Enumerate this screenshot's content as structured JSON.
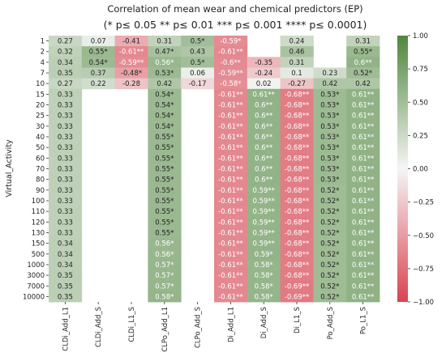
{
  "chart_data": {
    "type": "heatmap",
    "title": "Correlation of mean wear and chemical predictors (EP)",
    "subtitle": "(* p≤ 0.05 ** p≤ 0.01 *** p≤ 0.001 **** p≤ 0.0001)",
    "ylabel": "Virtual_Activity",
    "xlabel": "",
    "columns": [
      "CLDi_Add_L1",
      "CLDi_Add_S",
      "CLDi_L1_S",
      "CLPo_Add_L1",
      "CLPo_Add_S",
      "Di_Add_L1",
      "Di_Add_S",
      "Di_L1_S",
      "Po_Add_S",
      "Po_L1_S"
    ],
    "rows": [
      "1",
      "2",
      "4",
      "7",
      "10",
      "15",
      "20",
      "25",
      "30",
      "40",
      "50",
      "60",
      "70",
      "80",
      "90",
      "100",
      "110",
      "120",
      "130",
      "150",
      "500",
      "1000",
      "3000",
      "7000",
      "10000"
    ],
    "values": [
      [
        0.27,
        0.07,
        -0.41,
        0.31,
        0.5,
        -0.59,
        null,
        0.24,
        null,
        0.31
      ],
      [
        0.32,
        0.55,
        -0.61,
        0.47,
        0.43,
        -0.61,
        null,
        0.46,
        null,
        0.55
      ],
      [
        0.34,
        0.54,
        -0.59,
        0.56,
        0.5,
        -0.6,
        -0.35,
        0.31,
        null,
        0.6
      ],
      [
        0.35,
        0.37,
        -0.48,
        0.53,
        0.06,
        -0.59,
        -0.24,
        0.1,
        0.23,
        0.52
      ],
      [
        0.27,
        0.22,
        -0.28,
        0.42,
        -0.17,
        -0.58,
        0.02,
        -0.27,
        0.42,
        0.42
      ],
      [
        0.33,
        null,
        null,
        0.54,
        null,
        -0.61,
        0.61,
        -0.68,
        0.53,
        0.61
      ],
      [
        0.33,
        null,
        null,
        0.54,
        null,
        -0.61,
        0.6,
        -0.68,
        0.53,
        0.61
      ],
      [
        0.33,
        null,
        null,
        0.54,
        null,
        -0.61,
        0.6,
        -0.68,
        0.53,
        0.61
      ],
      [
        0.33,
        null,
        null,
        0.54,
        null,
        -0.61,
        0.6,
        -0.68,
        0.53,
        0.61
      ],
      [
        0.33,
        null,
        null,
        0.55,
        null,
        -0.61,
        0.6,
        -0.68,
        0.53,
        0.61
      ],
      [
        0.33,
        null,
        null,
        0.55,
        null,
        -0.61,
        0.6,
        -0.68,
        0.53,
        0.61
      ],
      [
        0.33,
        null,
        null,
        0.55,
        null,
        -0.61,
        0.6,
        -0.68,
        0.53,
        0.61
      ],
      [
        0.33,
        null,
        null,
        0.55,
        null,
        -0.61,
        0.6,
        -0.68,
        0.53,
        0.61
      ],
      [
        0.33,
        null,
        null,
        0.55,
        null,
        -0.61,
        0.6,
        -0.68,
        0.53,
        0.61
      ],
      [
        0.33,
        null,
        null,
        0.55,
        null,
        -0.61,
        0.59,
        -0.68,
        0.52,
        0.61
      ],
      [
        0.33,
        null,
        null,
        0.55,
        null,
        -0.61,
        0.59,
        -0.68,
        0.52,
        0.61
      ],
      [
        0.33,
        null,
        null,
        0.55,
        null,
        -0.61,
        0.59,
        -0.68,
        0.52,
        0.61
      ],
      [
        0.33,
        null,
        null,
        0.55,
        null,
        -0.61,
        0.59,
        -0.68,
        0.52,
        0.61
      ],
      [
        0.33,
        null,
        null,
        0.55,
        null,
        -0.61,
        0.59,
        -0.68,
        0.52,
        0.61
      ],
      [
        0.34,
        null,
        null,
        0.56,
        null,
        -0.61,
        0.59,
        -0.68,
        0.52,
        0.61
      ],
      [
        0.34,
        null,
        null,
        0.56,
        null,
        -0.61,
        0.59,
        -0.68,
        0.52,
        0.61
      ],
      [
        0.34,
        null,
        null,
        0.57,
        null,
        -0.61,
        0.58,
        -0.68,
        0.52,
        0.61
      ],
      [
        0.35,
        null,
        null,
        0.57,
        null,
        -0.61,
        0.58,
        -0.68,
        0.52,
        0.61
      ],
      [
        0.35,
        null,
        null,
        0.57,
        null,
        -0.61,
        0.58,
        -0.69,
        0.52,
        0.61
      ],
      [
        0.35,
        null,
        null,
        0.58,
        null,
        -0.61,
        0.58,
        -0.69,
        0.52,
        0.61
      ]
    ],
    "labels": [
      [
        "0.27",
        "0.07",
        "-0.41",
        "0.31",
        "0.5*",
        "-0.59*",
        "",
        "0.24",
        "",
        "0.31"
      ],
      [
        "0.32",
        "0.55*",
        "-0.61**",
        "0.47*",
        "0.43",
        "-0.61**",
        "",
        "0.46",
        "",
        "0.55*"
      ],
      [
        "0.34",
        "0.54*",
        "-0.59**",
        "0.56*",
        "0.5*",
        "-0.6**",
        "-0.35",
        "0.31",
        "",
        "0.6**"
      ],
      [
        "0.35",
        "0.37",
        "-0.48*",
        "0.53*",
        "0.06",
        "-0.59**",
        "-0.24",
        "0.1",
        "0.23",
        "0.52*"
      ],
      [
        "0.27",
        "0.22",
        "-0.28",
        "0.42",
        "-0.17",
        "-0.58*",
        "0.02",
        "-0.27",
        "0.42",
        "0.42"
      ],
      [
        "0.33",
        "",
        "",
        "0.54*",
        "",
        "-0.61**",
        "0.61**",
        "-0.68**",
        "0.53*",
        "0.61**"
      ],
      [
        "0.33",
        "",
        "",
        "0.54*",
        "",
        "-0.61**",
        "0.6**",
        "-0.68**",
        "0.53*",
        "0.61**"
      ],
      [
        "0.33",
        "",
        "",
        "0.54*",
        "",
        "-0.61**",
        "0.6**",
        "-0.68**",
        "0.53*",
        "0.61**"
      ],
      [
        "0.33",
        "",
        "",
        "0.54*",
        "",
        "-0.61**",
        "0.6**",
        "-0.68**",
        "0.53*",
        "0.61**"
      ],
      [
        "0.33",
        "",
        "",
        "0.55*",
        "",
        "-0.61**",
        "0.6**",
        "-0.68**",
        "0.53*",
        "0.61**"
      ],
      [
        "0.33",
        "",
        "",
        "0.55*",
        "",
        "-0.61**",
        "0.6**",
        "-0.68**",
        "0.53*",
        "0.61**"
      ],
      [
        "0.33",
        "",
        "",
        "0.55*",
        "",
        "-0.61**",
        "0.6**",
        "-0.68**",
        "0.53*",
        "0.61**"
      ],
      [
        "0.33",
        "",
        "",
        "0.55*",
        "",
        "-0.61**",
        "0.6**",
        "-0.68**",
        "0.53*",
        "0.61**"
      ],
      [
        "0.33",
        "",
        "",
        "0.55*",
        "",
        "-0.61**",
        "0.6**",
        "-0.68**",
        "0.53*",
        "0.61**"
      ],
      [
        "0.33",
        "",
        "",
        "0.55*",
        "",
        "-0.61**",
        "0.59**",
        "-0.68**",
        "0.52*",
        "0.61**"
      ],
      [
        "0.33",
        "",
        "",
        "0.55*",
        "",
        "-0.61**",
        "0.59**",
        "-0.68**",
        "0.52*",
        "0.61**"
      ],
      [
        "0.33",
        "",
        "",
        "0.55*",
        "",
        "-0.61**",
        "0.59**",
        "-0.68**",
        "0.52*",
        "0.61**"
      ],
      [
        "0.33",
        "",
        "",
        "0.55*",
        "",
        "-0.61**",
        "0.59**",
        "-0.68**",
        "0.52*",
        "0.61**"
      ],
      [
        "0.33",
        "",
        "",
        "0.55*",
        "",
        "-0.61**",
        "0.59**",
        "-0.68**",
        "0.52*",
        "0.61**"
      ],
      [
        "0.34",
        "",
        "",
        "0.56*",
        "",
        "-0.61**",
        "0.59**",
        "-0.68**",
        "0.52*",
        "0.61**"
      ],
      [
        "0.34",
        "",
        "",
        "0.56*",
        "",
        "-0.61**",
        "0.59*",
        "-0.68**",
        "0.52*",
        "0.61**"
      ],
      [
        "0.34",
        "",
        "",
        "0.57*",
        "",
        "-0.61**",
        "0.58*",
        "-0.68**",
        "0.52*",
        "0.61**"
      ],
      [
        "0.35",
        "",
        "",
        "0.57*",
        "",
        "-0.61**",
        "0.58*",
        "-0.68**",
        "0.52*",
        "0.61**"
      ],
      [
        "0.35",
        "",
        "",
        "0.57*",
        "",
        "-0.61**",
        "0.58*",
        "-0.69**",
        "0.52*",
        "0.61**"
      ],
      [
        "0.35",
        "",
        "",
        "0.58*",
        "",
        "-0.61**",
        "0.58*",
        "-0.69**",
        "0.52*",
        "0.61**"
      ]
    ],
    "colorbar": {
      "range": [
        -1,
        1
      ],
      "ticks": [
        -1.0,
        -0.75,
        -0.5,
        -0.25,
        0.0,
        0.25,
        0.5,
        0.75,
        1.0
      ],
      "tick_labels": [
        "−1.00",
        "−0.75",
        "−0.50",
        "−0.25",
        "0.00",
        "0.25",
        "0.50",
        "0.75",
        "1.00"
      ],
      "low_color": "#d94350",
      "mid_color": "#f5f5f5",
      "high_color": "#4f873d"
    }
  }
}
